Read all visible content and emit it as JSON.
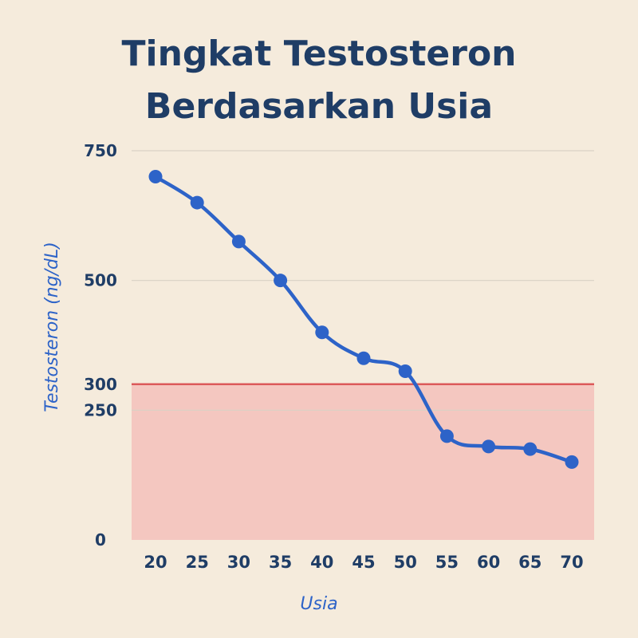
{
  "colors": {
    "background": "#f5ebdc",
    "title": "#1f3d66",
    "line": "#2d63c8",
    "threshold_line": "#dc5a5a",
    "low_zone_fill": "#f4b9b5",
    "gridline": "#d9d1c5"
  },
  "chart_data": {
    "type": "line",
    "title_lines": [
      "Tingkat Testosteron",
      "Berdasarkan Usia"
    ],
    "xlabel": "Usia",
    "ylabel": "Testosteron (ng/dL)",
    "x": [
      20,
      25,
      30,
      35,
      40,
      45,
      50,
      55,
      60,
      65,
      70
    ],
    "series": [
      {
        "values": [
          700,
          650,
          575,
          500,
          400,
          350,
          325,
          200,
          180,
          175,
          150
        ]
      }
    ],
    "yticks": [
      750,
      500,
      300,
      250,
      0
    ],
    "ylim": [
      0,
      750
    ],
    "xlim": [
      17.5,
      72.5
    ],
    "threshold": 300,
    "low_zone": [
      0,
      300
    ],
    "grid": true,
    "legend": "none"
  }
}
